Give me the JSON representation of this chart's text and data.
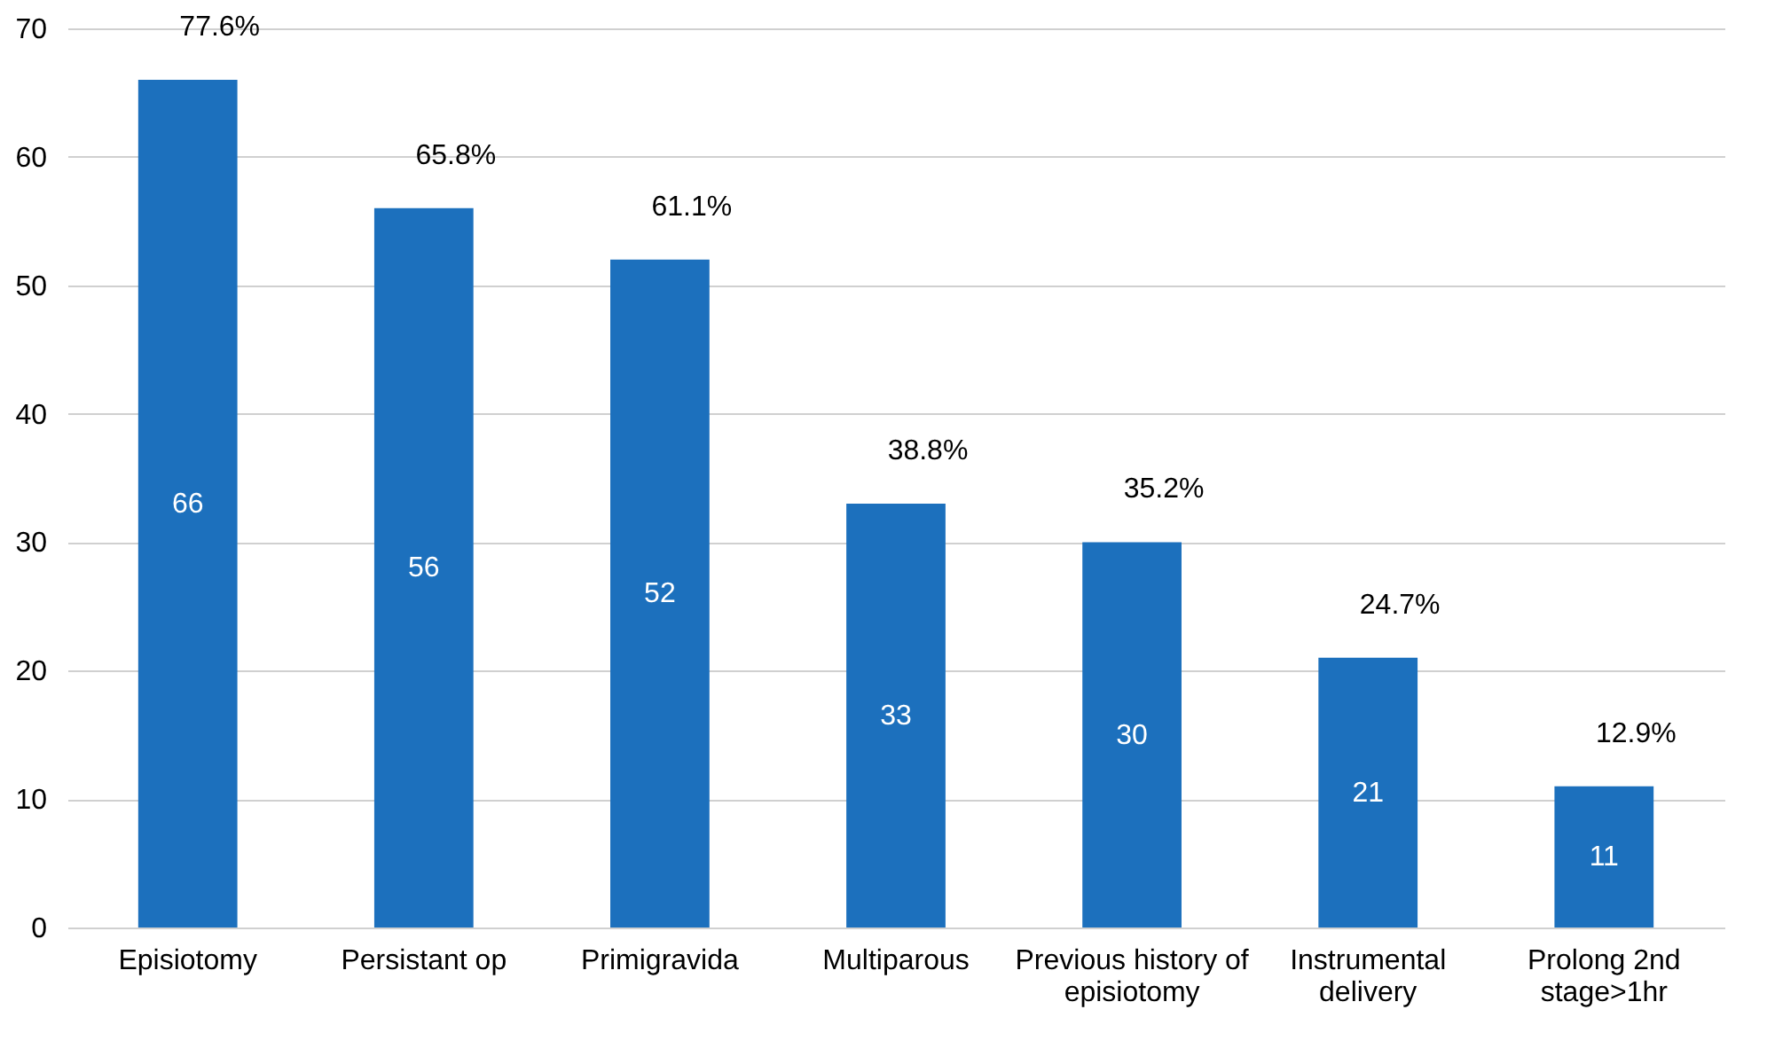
{
  "chart_data": {
    "type": "bar",
    "categories": [
      "Episiotomy",
      "Persistant op",
      "Primigravida",
      "Multiparous",
      "Previous history of episiotomy",
      "Instrumental delivery",
      "Prolong 2nd stage>1hr"
    ],
    "values": [
      66,
      56,
      52,
      33,
      30,
      21,
      11
    ],
    "color": "#1c70bd",
    "ylim": [
      0,
      70
    ],
    "yticks": [
      0,
      10,
      20,
      30,
      40,
      50,
      60,
      70
    ],
    "grid": "y",
    "data_labels": true,
    "annotations": [
      {
        "text": "77.6%",
        "x": "Episiotomy",
        "y": 66
      },
      {
        "text": "65.8%",
        "x": "Persistant op",
        "y": 56
      },
      {
        "text": "61.1%",
        "x": "Primigravida",
        "y": 52
      },
      {
        "text": "38.8%",
        "x": "Multiparous",
        "y": 33
      },
      {
        "text": "35.2%",
        "x": "Previous history of episiotomy",
        "y": 30
      },
      {
        "text": "24.7%",
        "x": "Instrumental delivery",
        "y": 21
      },
      {
        "text": "12.9%",
        "x": "Prolong 2nd stage>1hr",
        "y": 11
      }
    ]
  }
}
